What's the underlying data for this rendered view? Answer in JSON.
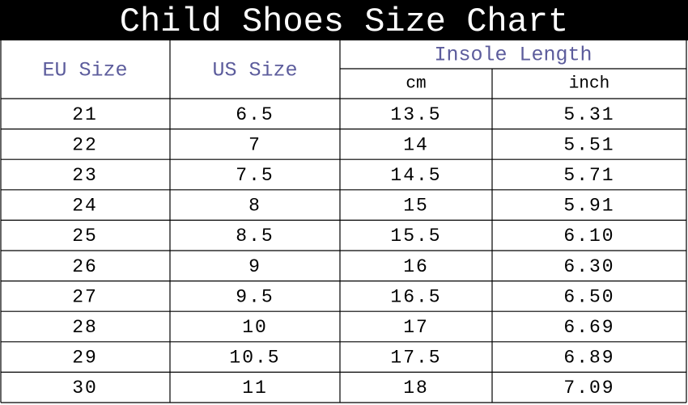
{
  "title": "Child Shoes Size Chart",
  "table": {
    "header": {
      "eu_size": "EU Size",
      "us_size": "US Size",
      "insole_length": "Insole Length",
      "cm": "cm",
      "inch": "inch"
    },
    "rows": [
      [
        "21",
        "6.5",
        "13.5",
        "5.31"
      ],
      [
        "22",
        "7",
        "14",
        "5.51"
      ],
      [
        "23",
        "7.5",
        "14.5",
        "5.71"
      ],
      [
        "24",
        "8",
        "15",
        "5.91"
      ],
      [
        "25",
        "8.5",
        "15.5",
        "6.10"
      ],
      [
        "26",
        "9",
        "16",
        "6.30"
      ],
      [
        "27",
        "9.5",
        "16.5",
        "6.50"
      ],
      [
        "28",
        "10",
        "17",
        "6.69"
      ],
      [
        "29",
        "10.5",
        "17.5",
        "6.89"
      ],
      [
        "30",
        "11",
        "18",
        "7.09"
      ]
    ]
  }
}
